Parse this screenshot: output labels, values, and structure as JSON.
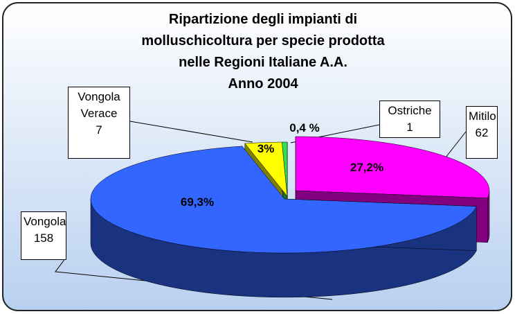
{
  "chart_data": {
    "type": "pie3d",
    "title": [
      "Ripartizione degli impianti di",
      "molluschicoltura per specie prodotta",
      "nelle Regioni Italiane A.A.",
      "Anno 2004"
    ],
    "categories": [
      "Mitilo",
      "Vongola",
      "Vongola Verace",
      "Ostriche"
    ],
    "values": [
      62,
      158,
      7,
      1
    ],
    "percent": [
      27.2,
      69.3,
      3,
      0.4
    ],
    "percent_labels": [
      "27,2%",
      "69,3%",
      "3%",
      "0,4 %"
    ],
    "colors": [
      "#ff00ff",
      "#3366ff",
      "#ffff00",
      "#33dd55"
    ]
  }
}
